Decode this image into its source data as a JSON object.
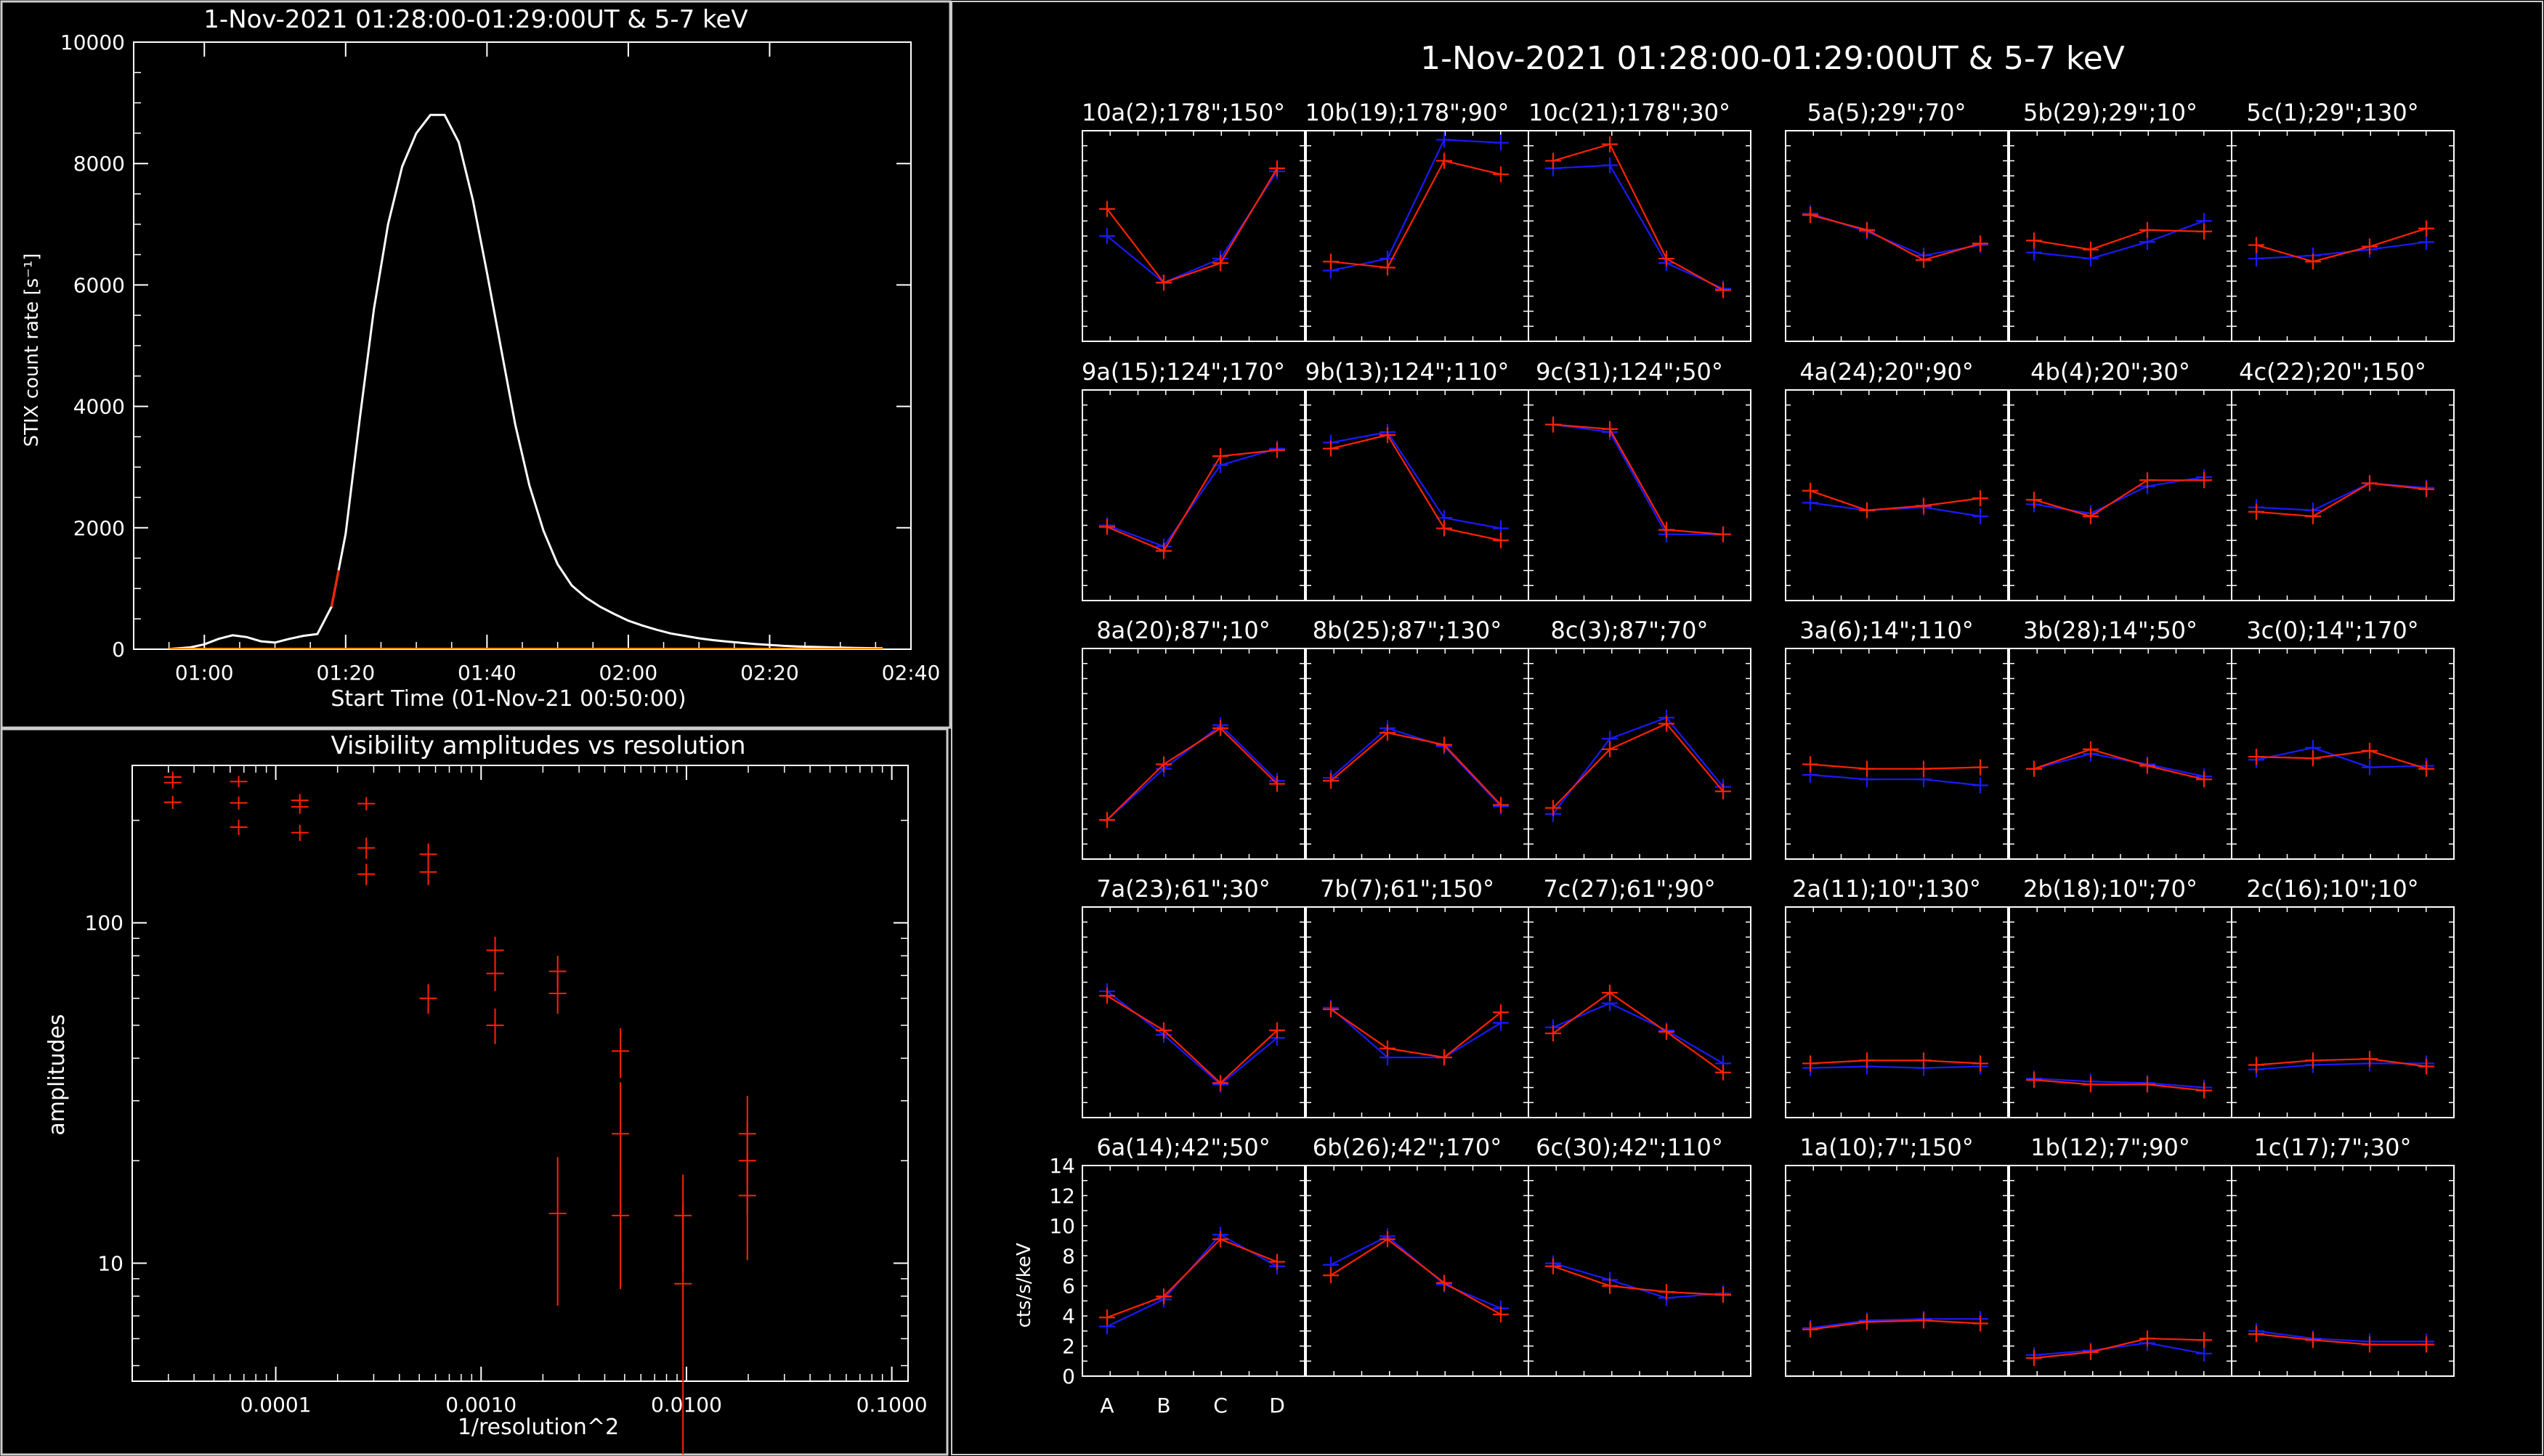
{
  "colors": {
    "background": "#000000",
    "axes": "#ffffff",
    "curve": "#ffffff",
    "red": "#ff2200",
    "blue": "#1a1aff",
    "orange": "#ff8800"
  },
  "chart_data": [
    {
      "type": "line",
      "title": "1-Nov-2021 01:28:00-01:29:00UT & 5-7 keV",
      "xlabel": "Start Time (01-Nov-21 00:50:00)",
      "ylabel": "STIX count rate [s⁻¹]",
      "x_ticks": [
        "01:00",
        "01:20",
        "01:40",
        "02:00",
        "02:20",
        "02:40"
      ],
      "y_ticks": [
        "0",
        "2000",
        "4000",
        "6000",
        "8000",
        "10000"
      ],
      "xlim_minutes": [
        50,
        160
      ],
      "ylim": [
        0,
        10000
      ],
      "series": [
        {
          "x": [
            55,
            58,
            60,
            62,
            64,
            66,
            68,
            70,
            72,
            74,
            76,
            78,
            80,
            82,
            84,
            86,
            88,
            90,
            92,
            94,
            96,
            98,
            100,
            102,
            104,
            106,
            108,
            110,
            112,
            114,
            116,
            118,
            120,
            122,
            124,
            126,
            128,
            130,
            132,
            134,
            136,
            138,
            140,
            142,
            144,
            146,
            148,
            150,
            152,
            154,
            156
          ],
          "y": [
            5,
            30,
            80,
            170,
            230,
            200,
            130,
            110,
            170,
            220,
            250,
            700,
            1900,
            3800,
            5600,
            7000,
            7950,
            8500,
            8800,
            8800,
            8350,
            7400,
            6200,
            4950,
            3700,
            2700,
            1950,
            1400,
            1050,
            850,
            700,
            580,
            470,
            390,
            320,
            260,
            220,
            180,
            150,
            125,
            105,
            85,
            70,
            55,
            45,
            38,
            32,
            26,
            22,
            18,
            15
          ]
        }
      ],
      "highlight_interval_minutes": [
        78,
        79
      ]
    },
    {
      "type": "scatter",
      "title": "Visibility amplitudes vs resolution",
      "xlabel": "1/resolution^2",
      "ylabel": "amplitudes",
      "x_ticks": [
        "0.0001",
        "0.0010",
        "0.0100",
        "0.1000"
      ],
      "y_ticks": [
        "10",
        "100"
      ],
      "log_x": true,
      "log_y": true,
      "xlim": [
        2e-05,
        0.12
      ],
      "ylim": [
        4.5,
        290
      ],
      "points": [
        {
          "x": 3.15e-05,
          "y": 268,
          "err": 10
        },
        {
          "x": 3.15e-05,
          "y": 258,
          "err": 10
        },
        {
          "x": 3.15e-05,
          "y": 226,
          "err": 10
        },
        {
          "x": 6.6e-05,
          "y": 260,
          "err": 10
        },
        {
          "x": 6.6e-05,
          "y": 225,
          "err": 10
        },
        {
          "x": 6.6e-05,
          "y": 191,
          "err": 10
        },
        {
          "x": 0.000131,
          "y": 229,
          "err": 10
        },
        {
          "x": 0.000131,
          "y": 219,
          "err": 10
        },
        {
          "x": 0.000131,
          "y": 184,
          "err": 10
        },
        {
          "x": 0.000276,
          "y": 224,
          "err": 10
        },
        {
          "x": 0.000276,
          "y": 166,
          "err": 12
        },
        {
          "x": 0.000276,
          "y": 139,
          "err": 10
        },
        {
          "x": 0.000553,
          "y": 159,
          "err": 12
        },
        {
          "x": 0.000553,
          "y": 141,
          "err": 12
        },
        {
          "x": 0.000553,
          "y": 60,
          "err": 6
        },
        {
          "x": 0.00117,
          "y": 83,
          "err": 8
        },
        {
          "x": 0.00117,
          "y": 71,
          "err": 8
        },
        {
          "x": 0.00117,
          "y": 50,
          "err": 6
        },
        {
          "x": 0.00236,
          "y": 72,
          "err": 8
        },
        {
          "x": 0.00236,
          "y": 62,
          "err": 8
        },
        {
          "x": 0.00236,
          "y": 14,
          "err": 6.5
        },
        {
          "x": 0.00477,
          "y": 42,
          "err": 7
        },
        {
          "x": 0.00477,
          "y": 24,
          "err": 10
        },
        {
          "x": 0.00477,
          "y": 13.8,
          "err": 5.4
        },
        {
          "x": 0.00962,
          "y": 13.8,
          "err": 4.4
        },
        {
          "x": 0.00962,
          "y": 8.7,
          "err": 6.2
        },
        {
          "x": 0.0198,
          "y": 24,
          "err": 7
        },
        {
          "x": 0.0198,
          "y": 20,
          "err": 6
        },
        {
          "x": 0.0198,
          "y": 15.8,
          "err": 5.6
        }
      ]
    },
    {
      "type": "line",
      "title": "1-Nov-2021 01:28:00-01:29:00UT & 5-7 keV",
      "ylabel": "cts/s/keV",
      "y_ticks": [
        "0",
        "2",
        "4",
        "6",
        "8",
        "10",
        "12",
        "14"
      ],
      "ylim": [
        0,
        14
      ],
      "categories": [
        "A",
        "B",
        "C",
        "D"
      ],
      "panels": [
        {
          "label": "10a(2);178\";150°",
          "red": [
            8.8,
            3.9,
            5.2,
            11.5
          ],
          "blue": [
            7.0,
            3.9,
            5.5,
            11.3
          ]
        },
        {
          "label": "10b(19);178\";90°",
          "red": [
            5.3,
            4.9,
            12.0,
            11.1
          ],
          "blue": [
            4.7,
            5.5,
            13.4,
            13.2
          ]
        },
        {
          "label": "10c(21);178\";30°",
          "red": [
            12.0,
            13.1,
            5.5,
            3.4
          ],
          "blue": [
            11.5,
            11.7,
            5.2,
            3.5
          ]
        },
        {
          "label": "9a(15);124\";170°",
          "red": [
            4.9,
            3.3,
            9.6,
            10.0
          ],
          "blue": [
            5.0,
            3.6,
            9.0,
            10.1
          ]
        },
        {
          "label": "9b(13);124\";110°",
          "red": [
            10.1,
            11.0,
            4.8,
            4.0
          ],
          "blue": [
            10.5,
            11.2,
            5.5,
            4.8
          ]
        },
        {
          "label": "9c(31);124\";50°",
          "red": [
            11.7,
            11.4,
            4.7,
            4.4
          ],
          "blue": [
            11.7,
            11.2,
            4.4,
            4.4
          ]
        },
        {
          "label": "8a(20);87\";10°",
          "red": [
            2.6,
            6.3,
            8.7,
            5.0
          ],
          "blue": [
            2.6,
            6.0,
            8.9,
            5.2
          ]
        },
        {
          "label": "8b(25);87\";130°",
          "red": [
            5.2,
            8.4,
            7.6,
            3.6
          ],
          "blue": [
            5.4,
            8.7,
            7.5,
            3.5
          ]
        },
        {
          "label": "8c(3);87\";70°",
          "red": [
            3.4,
            7.3,
            9.0,
            4.5
          ],
          "blue": [
            3.0,
            8.0,
            9.4,
            4.8
          ]
        },
        {
          "label": "7a(23);61\";30°",
          "red": [
            8.1,
            5.8,
            2.3,
            5.8
          ],
          "blue": [
            8.4,
            5.5,
            2.2,
            5.3
          ]
        },
        {
          "label": "7b(7);61\";150°",
          "red": [
            7.2,
            4.6,
            4.0,
            7.0
          ],
          "blue": [
            7.3,
            4.0,
            4.0,
            6.3
          ]
        },
        {
          "label": "7c(27);61\";90°",
          "red": [
            5.6,
            8.3,
            5.7,
            3.0
          ],
          "blue": [
            6.0,
            7.6,
            5.8,
            3.6
          ]
        },
        {
          "label": "6a(14);42\";50°",
          "red": [
            3.9,
            5.3,
            9.1,
            7.6
          ],
          "blue": [
            3.3,
            5.1,
            9.4,
            7.3
          ]
        },
        {
          "label": "6b(26);42\";170°",
          "red": [
            6.7,
            9.1,
            6.2,
            4.1
          ],
          "blue": [
            7.4,
            9.3,
            6.1,
            4.5
          ]
        },
        {
          "label": "6c(30);42\";110°",
          "red": [
            7.3,
            6.0,
            5.6,
            5.4
          ],
          "blue": [
            7.5,
            6.4,
            5.2,
            5.5
          ]
        },
        {
          "label": "5a(5);29\";70°",
          "red": [
            8.4,
            7.4,
            5.4,
            6.5
          ],
          "blue": [
            8.5,
            7.3,
            5.7,
            6.4
          ]
        },
        {
          "label": "5b(29);29\";10°",
          "red": [
            6.7,
            6.1,
            7.4,
            7.3
          ],
          "blue": [
            5.9,
            5.5,
            6.6,
            8.0
          ]
        },
        {
          "label": "5c(1);29\";130°",
          "red": [
            6.4,
            5.3,
            6.3,
            7.5
          ],
          "blue": [
            5.5,
            5.7,
            6.1,
            6.6
          ]
        },
        {
          "label": "4a(24);20\";90°",
          "red": [
            7.3,
            6.0,
            6.3,
            6.8
          ],
          "blue": [
            6.5,
            6.0,
            6.2,
            5.6
          ]
        },
        {
          "label": "4b(4);20\";30°",
          "red": [
            6.7,
            5.6,
            8.0,
            8.0
          ],
          "blue": [
            6.4,
            5.8,
            7.6,
            8.2
          ]
        },
        {
          "label": "4c(22);20\";150°",
          "red": [
            5.9,
            5.6,
            7.8,
            7.4
          ],
          "blue": [
            6.2,
            6.0,
            7.8,
            7.5
          ]
        },
        {
          "label": "3a(6);14\";110°",
          "red": [
            6.3,
            6.0,
            6.0,
            6.1
          ],
          "blue": [
            5.6,
            5.3,
            5.3,
            4.9
          ]
        },
        {
          "label": "3b(28);14\";50°",
          "red": [
            6.0,
            7.3,
            6.2,
            5.3
          ],
          "blue": [
            6.0,
            7.0,
            6.3,
            5.5
          ]
        },
        {
          "label": "3c(0);14\";170°",
          "red": [
            6.8,
            6.7,
            7.2,
            6.0
          ],
          "blue": [
            6.6,
            7.4,
            6.1,
            6.2
          ]
        },
        {
          "label": "2a(11);10\";130°",
          "red": [
            3.6,
            3.8,
            3.8,
            3.6
          ],
          "blue": [
            3.3,
            3.4,
            3.3,
            3.4
          ]
        },
        {
          "label": "2b(18);10\";70°",
          "red": [
            2.5,
            2.2,
            2.2,
            1.8
          ],
          "blue": [
            2.6,
            2.4,
            2.3,
            2.0
          ]
        },
        {
          "label": "2c(16);10\";10°",
          "red": [
            3.5,
            3.8,
            3.9,
            3.4
          ],
          "blue": [
            3.2,
            3.5,
            3.6,
            3.6
          ]
        },
        {
          "label": "1a(10);7\";150°",
          "red": [
            3.1,
            3.6,
            3.7,
            3.5
          ],
          "blue": [
            3.2,
            3.7,
            3.8,
            3.8
          ]
        },
        {
          "label": "1b(12);7\";90°",
          "red": [
            1.2,
            1.6,
            2.5,
            2.4
          ],
          "blue": [
            1.4,
            1.7,
            2.2,
            1.5
          ]
        },
        {
          "label": "1c(17);7\";30°",
          "red": [
            2.8,
            2.4,
            2.1,
            2.1
          ],
          "blue": [
            3.0,
            2.5,
            2.3,
            2.3
          ]
        }
      ]
    }
  ]
}
